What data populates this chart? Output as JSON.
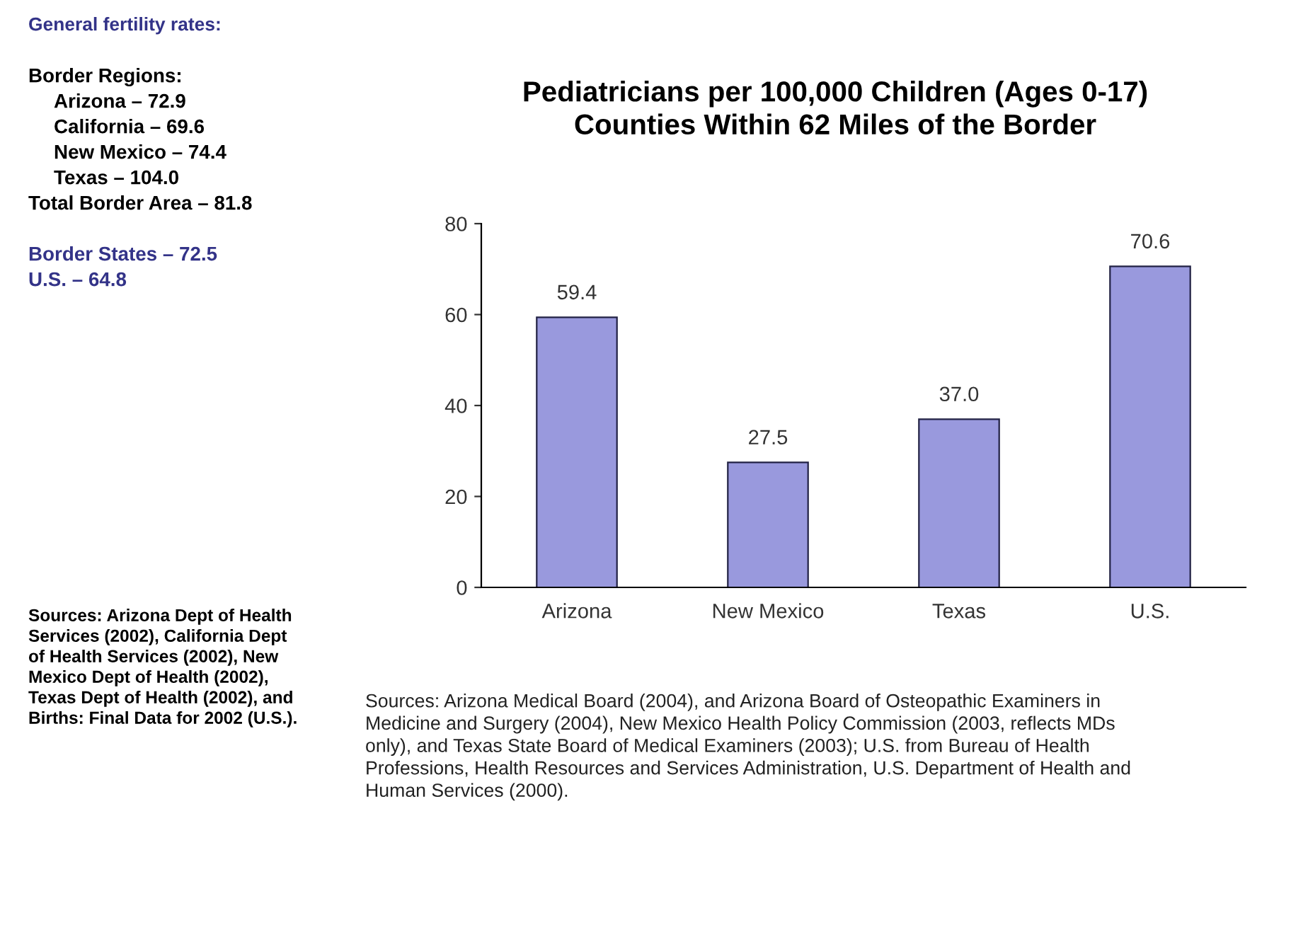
{
  "chart_data": {
    "type": "bar",
    "title": "Pediatricians per 100,000 Children (Ages 0-17)\nCounties Within 62 Miles of the Border",
    "categories": [
      "Arizona",
      "New Mexico",
      "Texas",
      "U.S."
    ],
    "values": [
      59.4,
      27.5,
      37.0,
      70.6
    ],
    "value_labels": [
      "59.4",
      "27.5",
      "37.0",
      "70.6"
    ],
    "color": "#9999dd",
    "ylim": [
      0,
      80
    ],
    "yticks": [
      0,
      20,
      40,
      60,
      80
    ],
    "grid": false,
    "annotations": [
      "General fertility rates:",
      "Border Regions:",
      "Arizona – 72.9",
      "California – 69.6",
      "New Mexico – 74.4",
      "Texas – 104.0",
      "Total Border Area – 81.8",
      "Border States – 72.5",
      "U.S. – 64.8",
      "Sources: Arizona Dept of Health\nServices (2002), California Dept\nof Health Services (2002), New\nMexico Dept of Health (2002),\nTexas Dept of Health (2002), and\nBirths: Final Data for 2002 (U.S.).",
      "Sources: Arizona Medical Board (2004), and Arizona Board of Osteopathic Examiners in\nMedicine and Surgery (2004), New Mexico Health Policy Commission (2003, reflects MDs\nonly), and Texas State Board of Medical Examiners (2003); U.S. from Bureau of Health\nProfessions, Health Resources and Services Administration, U.S. Department of Health and\nHuman Services (2000)."
    ]
  }
}
